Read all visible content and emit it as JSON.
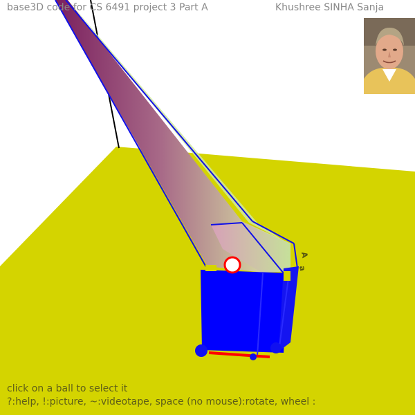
{
  "window": {
    "title_left": "base3D code for CS 6491 project 3 Part A",
    "title_right": "Khushree SINHA Sanja"
  },
  "scene": {
    "ground_color": "#d4d400",
    "cone_colors": [
      "#8a2a6a",
      "#d8f0a0"
    ],
    "box_color": "#0000ff",
    "edge_color": "#1010e8",
    "selected_ball_color": "#ff0000",
    "label_a": "A",
    "label_b": "a"
  },
  "help": {
    "line1": "click on a ball to select it",
    "line2": "?:help, !:picture, ~:videotape, space (no mouse):rotate, wheel :"
  },
  "portrait": {
    "icon": "author-photo"
  }
}
